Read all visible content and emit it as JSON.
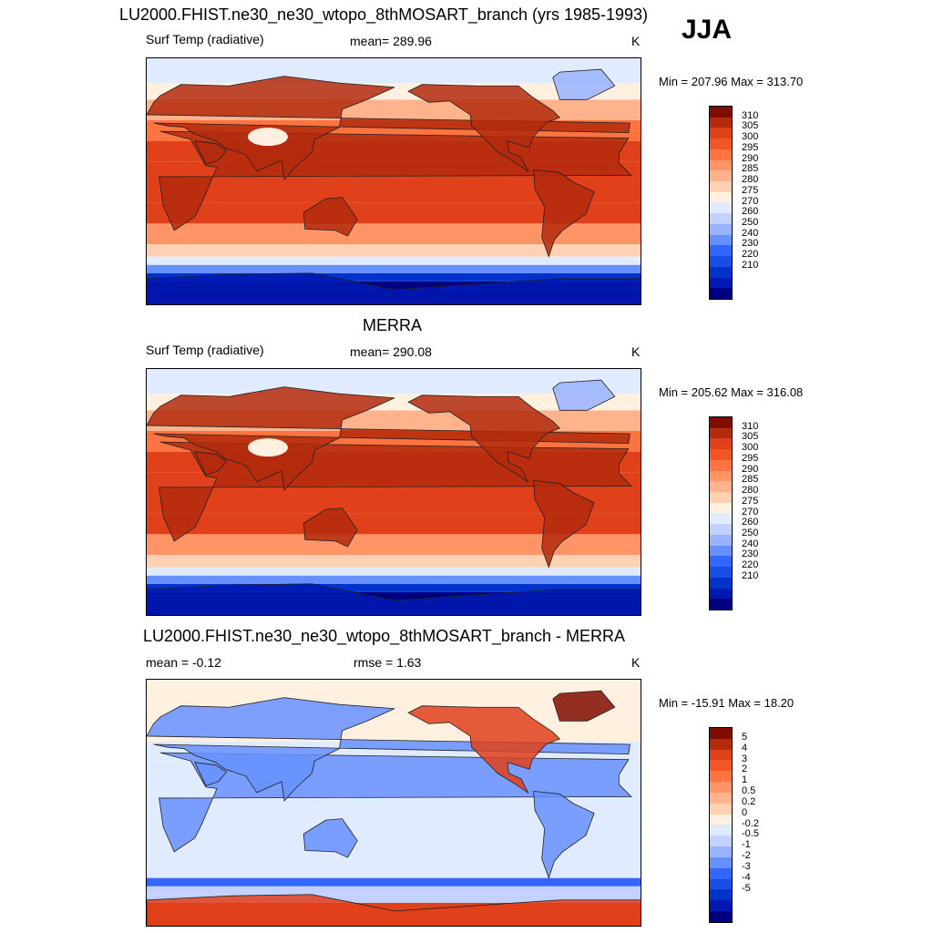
{
  "header": {
    "title": "LU2000.FHIST.ne30_ne30_wtopo_8thMOSART_branch (yrs 1985-1993)",
    "season": "JJA"
  },
  "panels": [
    {
      "title": "",
      "left_label": "Surf Temp (radiative)",
      "center_label": "mean= 289.96",
      "units": "K",
      "minmax": "Min = 207.96 Max = 313.70",
      "colors": [
        "#000080",
        "#0019b3",
        "#0033cc",
        "#1a4de6",
        "#3366ff",
        "#6690ff",
        "#99b3ff",
        "#c2d1ff",
        "#e1ebff",
        "#fff0e0",
        "#ffd1b3",
        "#ffb38c",
        "#ff9466",
        "#ff7340",
        "#f25526",
        "#e0401a",
        "#b32a0d",
        "#800d00"
      ],
      "ticks": [
        "310",
        "305",
        "300",
        "295",
        "290",
        "285",
        "280",
        "275",
        "270",
        "260",
        "250",
        "240",
        "230",
        "220",
        "210"
      ]
    },
    {
      "title": "MERRA",
      "left_label": "Surf Temp (radiative)",
      "center_label": "mean= 290.08",
      "units": "K",
      "minmax": "Min = 205.62 Max = 316.08",
      "colors": [
        "#000080",
        "#0019b3",
        "#0033cc",
        "#1a4de6",
        "#3366ff",
        "#6690ff",
        "#99b3ff",
        "#c2d1ff",
        "#e1ebff",
        "#fff0e0",
        "#ffd1b3",
        "#ffb38c",
        "#ff9466",
        "#ff7340",
        "#f25526",
        "#e0401a",
        "#b32a0d",
        "#800d00"
      ],
      "ticks": [
        "310",
        "305",
        "300",
        "295",
        "290",
        "285",
        "280",
        "275",
        "270",
        "260",
        "250",
        "240",
        "230",
        "220",
        "210"
      ]
    },
    {
      "title": "LU2000.FHIST.ne30_ne30_wtopo_8thMOSART_branch - MERRA",
      "left_label": "mean =  -0.12",
      "center_label": "rmse =   1.63",
      "units": "K",
      "minmax": "Min = -15.91 Max =  18.20",
      "colors": [
        "#000080",
        "#0019b3",
        "#0033cc",
        "#1a4de6",
        "#3366ff",
        "#6690ff",
        "#99b3ff",
        "#c2d1ff",
        "#e1ebff",
        "#fff0e0",
        "#ffd1b3",
        "#ffb38c",
        "#ff9466",
        "#ff7340",
        "#f25526",
        "#e0401a",
        "#b32a0d",
        "#800d00"
      ],
      "ticks": [
        "5",
        "4",
        "3",
        "2",
        "1",
        "0.5",
        "0.2",
        "0",
        "-0.2",
        "-0.5",
        "-1",
        "-2",
        "-3",
        "-4",
        "-5"
      ]
    }
  ],
  "chart_data": [
    {
      "type": "heatmap",
      "title": "LU2000.FHIST.ne30_ne30_wtopo_8thMOSART_branch (yrs 1985-1993)",
      "variable": "Surf Temp (radiative)",
      "units": "K",
      "mean": 289.96,
      "min": 207.96,
      "max": 313.7,
      "levels": [
        210,
        220,
        230,
        240,
        250,
        260,
        270,
        275,
        280,
        285,
        290,
        295,
        300,
        305,
        310
      ]
    },
    {
      "type": "heatmap",
      "title": "MERRA",
      "variable": "Surf Temp (radiative)",
      "units": "K",
      "mean": 290.08,
      "min": 205.62,
      "max": 316.08,
      "levels": [
        210,
        220,
        230,
        240,
        250,
        260,
        270,
        275,
        280,
        285,
        290,
        295,
        300,
        305,
        310
      ]
    },
    {
      "type": "heatmap",
      "title": "LU2000.FHIST.ne30_ne30_wtopo_8thMOSART_branch - MERRA",
      "units": "K",
      "mean": -0.12,
      "rmse": 1.63,
      "min": -15.91,
      "max": 18.2,
      "levels": [
        -5,
        -4,
        -3,
        -2,
        -1,
        -0.5,
        -0.2,
        0,
        0.2,
        0.5,
        1,
        2,
        3,
        4,
        5
      ]
    }
  ]
}
